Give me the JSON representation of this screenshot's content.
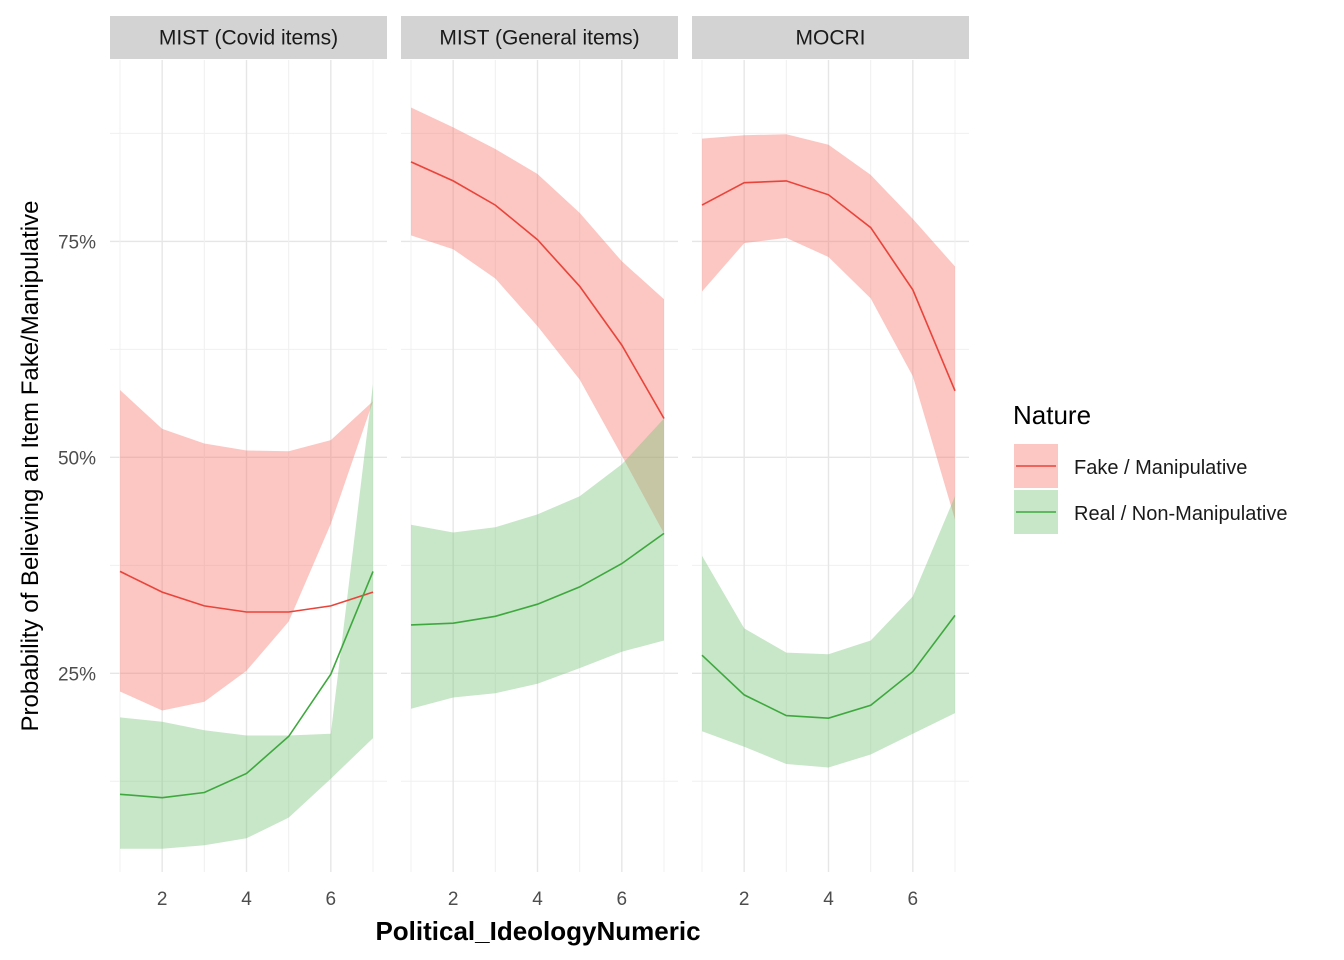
{
  "chart_data": {
    "type": "line",
    "xlabel": "Political_IdeologyNumeric",
    "ylabel": "Probability of Believing an Item Fake/Manipulative",
    "xlim": [
      1,
      7
    ],
    "ylim": [
      0.02,
      0.96
    ],
    "x_ticks": [
      2,
      4,
      6
    ],
    "y_ticks": [
      0.25,
      0.5,
      0.75
    ],
    "y_tick_labels": [
      "25%",
      "50%",
      "75%"
    ],
    "grid": true,
    "legend": {
      "title": "Nature",
      "position": "right",
      "entries": [
        {
          "label": "Fake / Manipulative",
          "color": "#e8443a",
          "fill": "#f8766d"
        },
        {
          "label": "Real / Non-Manipulative",
          "color": "#3ea83e",
          "fill": "#7cc47c"
        }
      ]
    },
    "x": [
      1,
      2,
      3,
      4,
      5,
      6,
      7
    ],
    "panels": [
      {
        "strip": "MIST (Covid items)",
        "series": [
          {
            "name": "Fake / Manipulative",
            "values": [
              0.368,
              0.344,
              0.328,
              0.321,
              0.321,
              0.328,
              0.344
            ],
            "lower": [
              0.229,
              0.207,
              0.217,
              0.253,
              0.31,
              0.423,
              0.565
            ],
            "upper": [
              0.578,
              0.533,
              0.516,
              0.508,
              0.507,
              0.52,
              0.565
            ]
          },
          {
            "name": "Real / Non-Manipulative",
            "values": [
              0.11,
              0.106,
              0.112,
              0.134,
              0.177,
              0.249,
              0.368
            ],
            "lower": [
              0.047,
              0.047,
              0.051,
              0.059,
              0.083,
              0.128,
              0.175
            ],
            "upper": [
              0.199,
              0.194,
              0.184,
              0.178,
              0.178,
              0.18,
              0.585
            ]
          }
        ]
      },
      {
        "strip": "MIST (General items)",
        "series": [
          {
            "name": "Fake / Manipulative",
            "values": [
              0.842,
              0.82,
              0.792,
              0.752,
              0.698,
              0.63,
              0.545
            ],
            "lower": [
              0.757,
              0.741,
              0.707,
              0.652,
              0.59,
              0.502,
              0.412
            ],
            "upper": [
              0.905,
              0.882,
              0.857,
              0.828,
              0.783,
              0.727,
              0.683
            ]
          },
          {
            "name": "Real / Non-Manipulative",
            "values": [
              0.306,
              0.308,
              0.316,
              0.33,
              0.35,
              0.377,
              0.412
            ],
            "lower": [
              0.209,
              0.222,
              0.227,
              0.238,
              0.256,
              0.275,
              0.288
            ],
            "upper": [
              0.422,
              0.413,
              0.419,
              0.434,
              0.455,
              0.492,
              0.545
            ]
          }
        ]
      },
      {
        "strip": "MOCRI",
        "series": [
          {
            "name": "Fake / Manipulative",
            "values": [
              0.792,
              0.818,
              0.82,
              0.804,
              0.766,
              0.694,
              0.577
            ],
            "lower": [
              0.692,
              0.748,
              0.754,
              0.732,
              0.684,
              0.594,
              0.428
            ],
            "upper": [
              0.869,
              0.873,
              0.874,
              0.862,
              0.827,
              0.776,
              0.721
            ]
          },
          {
            "name": "Real / Non-Manipulative",
            "values": [
              0.271,
              0.225,
              0.201,
              0.198,
              0.213,
              0.252,
              0.317
            ],
            "lower": [
              0.183,
              0.165,
              0.145,
              0.141,
              0.156,
              0.18,
              0.204
            ],
            "upper": [
              0.386,
              0.302,
              0.274,
              0.272,
              0.288,
              0.339,
              0.455
            ]
          }
        ]
      }
    ]
  }
}
